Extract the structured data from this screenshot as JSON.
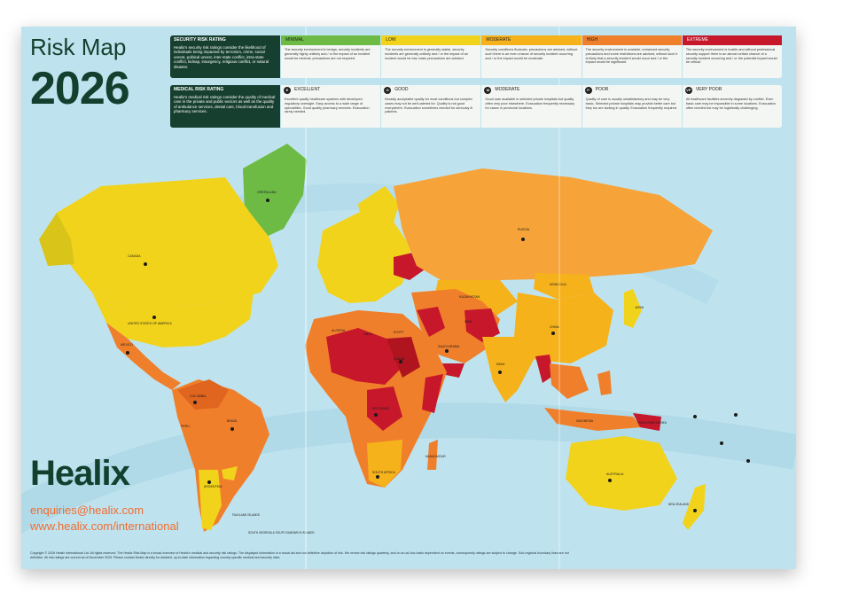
{
  "title": "Risk Map",
  "year": "2026",
  "brand": "Healix",
  "email": "enquiries@healix.com",
  "website": "www.healix.com/international",
  "copyright": "Copyright © 2026 Healix International Ltd. All rights reserved. The Healix Risk Map is a broad overview of Healix's medical and security risk ratings. The displayed information is a visual aid and not definitive depiction of risk. We review risk ratings quarterly, and on an ad-hoc basis dependent on events, consequently ratings are subject to change. Sub-regional boundary lines are not definitive. All risk ratings are current as of November 2025. Please contact Healix directly for detailed, up-to-date information regarding country-specific medical and security risks.",
  "security_legend": {
    "heading": "SECURITY RISK RATING",
    "description": "Healix's security risk ratings consider the likelihood of individuals being impacted by terrorism, crime, social unrest, political unrest, inter-state conflict, intra-state conflict, kidnap, insurgency, religious conflict, or natural disaster.",
    "levels": [
      {
        "label": "MINIMAL",
        "color": "#6dbb45",
        "text": "The security environment is benign, security incidents are generally highly unlikely and / or the impact of an incident would be minimal; precautions are not required."
      },
      {
        "label": "LOW",
        "color": "#f2d31b",
        "text": "The security environment is generally stable, security incidents are generally unlikely and / or the impact of an incident would be low; basic precautions are advised."
      },
      {
        "label": "MODERATE",
        "color": "#f6b21b",
        "text": "Security conditions fluctuate, precautions are advised, without such there is an even chance of security incident occurring and / or the impact would be moderate."
      },
      {
        "label": "HIGH",
        "color": "#f07f2b",
        "text": "The security environment is unstable, enhanced security precautions and some restrictions are advised, without such it is likely that a security incident would occur and / or the impact would be significant."
      },
      {
        "label": "EXTREME",
        "color": "#c6172b",
        "text": "The security environment is hostile and without professional security support there is an almost certain chance of a security incident occurring and / or the potential impact would be critical."
      }
    ]
  },
  "medical_legend": {
    "heading": "MEDICAL RISK RATING",
    "description": "Healix's medical risk ratings consider the quality of medical care in the private and public sectors as well as the quality of ambulance services, dental care, blood transfusion and pharmacy services.",
    "levels": [
      {
        "badge": "E",
        "label": "EXCELLENT",
        "text": "Excellent quality healthcare systems with developed regulatory oversight. Easy access to a wide range of specialities. Good quality pharmacy services. Evacuation rarely needed."
      },
      {
        "badge": "G",
        "label": "GOOD",
        "text": "Broadly acceptable quality for most conditions but complex cases may not be well catered for. Quality is not good everywhere. Evacuation sometimes needed for seriously ill patients."
      },
      {
        "badge": "M",
        "label": "MODERATE",
        "text": "Good care available in selected private hospitals but quality often very poor elsewhere. Evacuation frequently necessary for cases in provincial locations."
      },
      {
        "badge": "P",
        "label": "POOR",
        "text": "Quality of care is usually unsatisfactory and may be very basic. Selected private hospitals may provide better care but they too are lacking in quality. Evacuation frequently required."
      },
      {
        "badge": "VP",
        "label": "VERY POOR",
        "text": "All healthcare facilities severely degraded by conflict. Even basic care may be impossible in some locations. Evacuation often needed but may be logistically challenging."
      }
    ]
  },
  "map_labels": {
    "greenland": "GREENLAND",
    "canada": "CANADA",
    "usa": "UNITED STATES OF AMERICA",
    "mexico": "MEXICO",
    "brazil": "BRAZIL",
    "argentina": "ARGENTINA",
    "peru": "PERU",
    "colombia": "COLOMBIA",
    "russia": "RUSSIA",
    "china": "CHINA",
    "mongolia": "MONGOLIA",
    "india": "INDIA",
    "kazakhstan": "KAZAKHSTAN",
    "australia": "AUSTRALIA",
    "algeria": "ALGERIA",
    "libya": "LIBYA",
    "egypt": "EGYPT",
    "sudan": "SUDAN",
    "drc": "DR CONGO",
    "south_africa": "SOUTH AFRICA",
    "saudi_arabia": "SAUDI ARABIA",
    "iran": "IRAN",
    "indonesia": "INDONESIA",
    "japan": "JAPAN",
    "new_zealand": "NEW ZEALAND",
    "falkland": "FALKLAND ISLANDS",
    "south_georgia": "SOUTH GEORGIA & SOUTH SANDWICH ISLANDS",
    "madagascar": "MADAGASCAR",
    "papua": "PAPUA NEW GUINEA"
  }
}
